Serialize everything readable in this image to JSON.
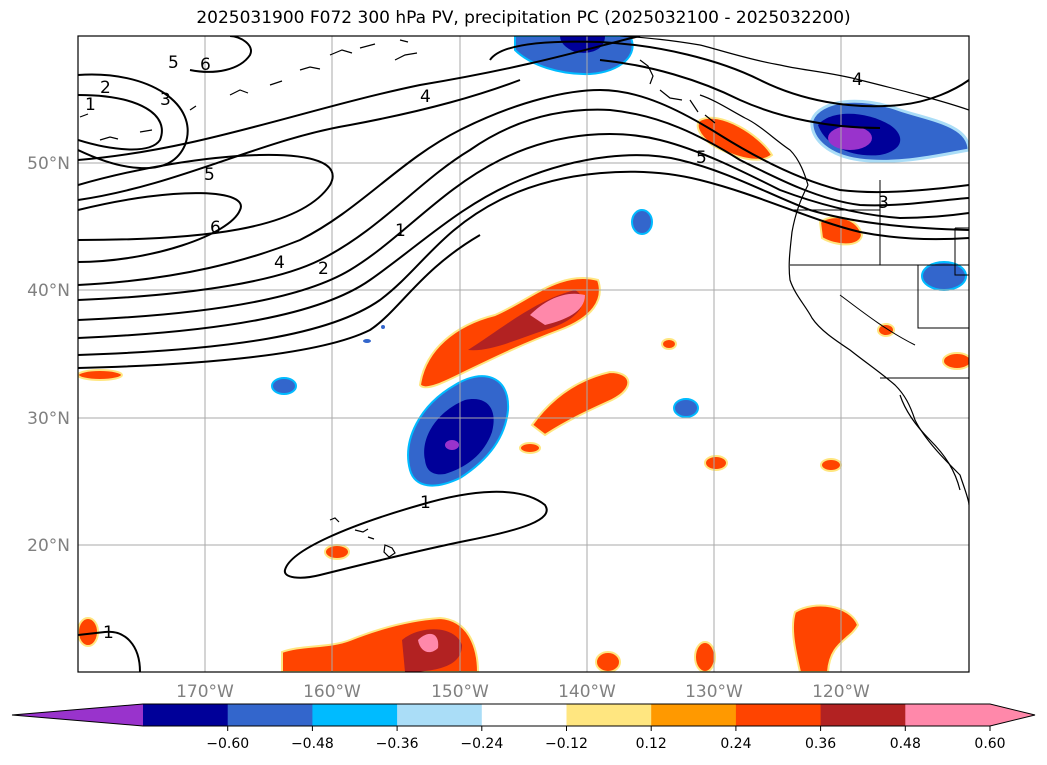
{
  "title": "2025031900 F072 300 hPa PV, precipitation PC (2025032100 - 2025032200)",
  "lat_labels": [
    "50°N",
    "40°N",
    "30°N",
    "20°N"
  ],
  "lon_labels": [
    "170°W",
    "160°W",
    "150°W",
    "140°W",
    "130°W",
    "120°W"
  ],
  "pv_contour_labels": [
    "5",
    "6",
    "2",
    "1",
    "3",
    "5",
    "6",
    "4",
    "2",
    "1",
    "4",
    "5",
    "4",
    "3",
    "1",
    "1"
  ],
  "colorbar": {
    "tick_labels": [
      "−0.60",
      "−0.48",
      "−0.36",
      "−0.24",
      "−0.12",
      "0.12",
      "0.24",
      "0.36",
      "0.48",
      "0.60"
    ],
    "colors": [
      "#9933cc",
      "#000099",
      "#3366cc",
      "#00bbff",
      "#aaddf7",
      "#ffffff",
      "#ffe680",
      "#ff9900",
      "#ff4400",
      "#b22222",
      "#ff88aa",
      "#ff88aa"
    ]
  },
  "colors": {
    "grid": "#aaaaaa",
    "contour": "#000000",
    "coast": "#000000"
  }
}
